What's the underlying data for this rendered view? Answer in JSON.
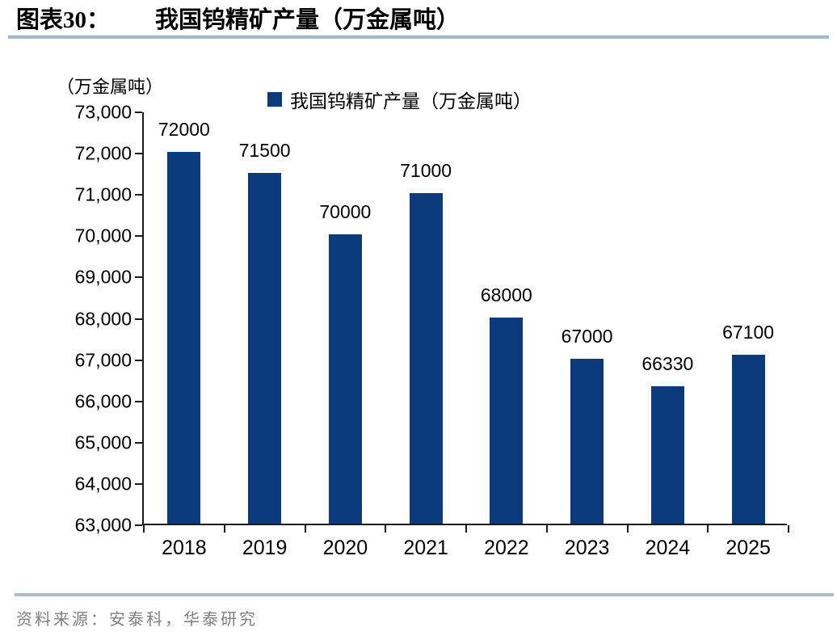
{
  "title": {
    "prefix": "图表30：",
    "caption": "我国钨精矿产量（万金属吨）"
  },
  "chart": {
    "unit_label": "（万金属吨）",
    "legend_label": "我国钨精矿产量（万金属吨）"
  },
  "chart_data": {
    "type": "bar",
    "title": "我国钨精矿产量（万金属吨）",
    "categories": [
      "2018",
      "2019",
      "2020",
      "2021",
      "2022",
      "2023",
      "2024",
      "2025"
    ],
    "values": [
      72000,
      71500,
      70000,
      71000,
      68000,
      67000,
      66330,
      67100
    ],
    "data_labels": [
      "72000",
      "71500",
      "70000",
      "71000",
      "68000",
      "67000",
      "66330",
      "67100"
    ],
    "xlabel": "",
    "ylabel": "（万金属吨）",
    "ylim": [
      63000,
      73000
    ],
    "ytick_step": 1000,
    "ytick_labels": [
      "73,000",
      "72,000",
      "71,000",
      "70,000",
      "69,000",
      "68,000",
      "67,000",
      "66,000",
      "65,000",
      "64,000",
      "63,000"
    ],
    "grid": false,
    "legend_position": "top",
    "legend_entries": [
      "我国钨精矿产量（万金属吨）"
    ],
    "bar_color": "#0b3b7c"
  },
  "source": {
    "text": "资料来源：安泰科，华泰研究"
  },
  "colors": {
    "bar": "#0b3b7c",
    "rule": "#a7bccd",
    "rule_edge": "#8ea8bd",
    "axis": "#1a1a1a",
    "source_text": "#7f7f7f",
    "title_text": "#000000"
  }
}
